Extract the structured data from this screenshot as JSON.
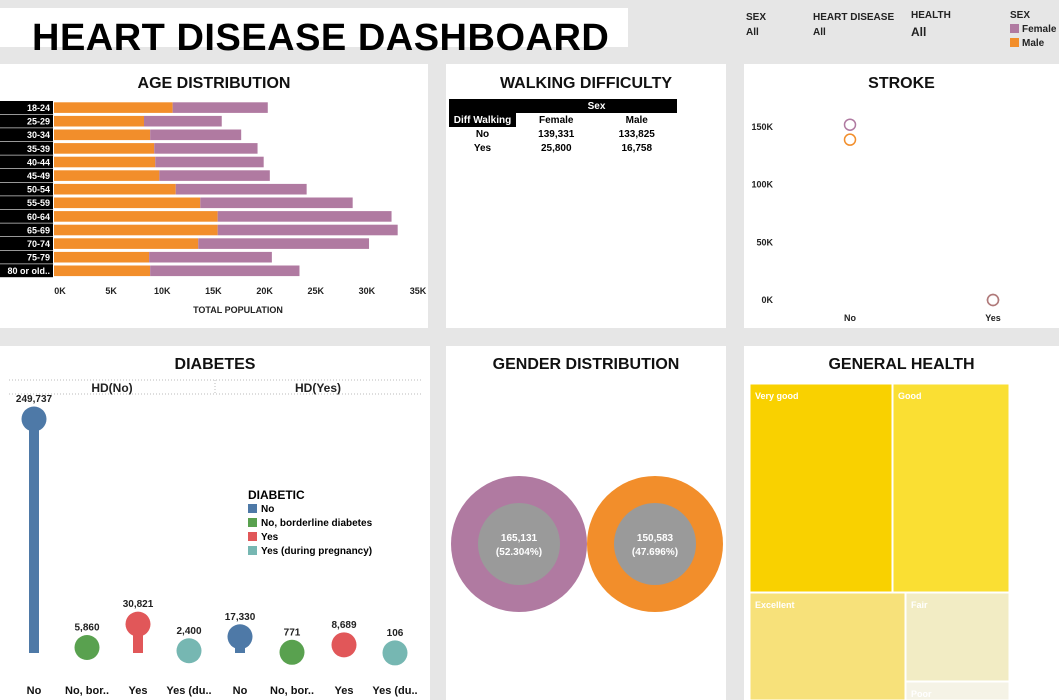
{
  "header": {
    "title": "HEART DISEASE DASHBOARD"
  },
  "filters": [
    {
      "label": "SEX",
      "value": "All"
    },
    {
      "label": "HEART DISEASE",
      "value": "All"
    },
    {
      "label": "HEALTH",
      "value": "All"
    }
  ],
  "legend_sex": {
    "title": "SEX",
    "items": [
      {
        "label": "Female",
        "color": "#b07aa1"
      },
      {
        "label": "Male",
        "color": "#f28e2b"
      }
    ]
  },
  "colors": {
    "female": "#b07aa1",
    "male": "#f28e2b",
    "no": "#4e79a7",
    "borderline": "#59a14f",
    "yes": "#e15759",
    "pregnancy": "#76b7b2"
  },
  "panels": {
    "age": {
      "title": "AGE DISTRIBUTION",
      "xlabel": "TOTAL POPULATION"
    },
    "walking": {
      "title": "WALKING DIFFICULTY",
      "col_group": "Sex",
      "row_header": "Diff Walking",
      "cols": [
        "Female",
        "Male"
      ],
      "rows": [
        {
          "label": "No",
          "values": [
            "139,331",
            "133,825"
          ]
        },
        {
          "label": "Yes",
          "values": [
            "25,800",
            "16,758"
          ]
        }
      ]
    },
    "stroke": {
      "title": "STROKE"
    },
    "diabetes": {
      "title": "DIABETES",
      "legend_title": "DIABETIC",
      "legend_items": [
        "No",
        "No, borderline diabetes",
        "Yes",
        "Yes (during pregnancy)"
      ]
    },
    "gender": {
      "title": "GENDER DISTRIBUTION"
    },
    "health": {
      "title": "GENERAL HEALTH"
    }
  },
  "chart_data": [
    {
      "type": "bar",
      "title": "AGE DISTRIBUTION",
      "xlabel": "TOTAL POPULATION",
      "stacked": true,
      "orientation": "horizontal",
      "categories": [
        "18-24",
        "25-29",
        "30-34",
        "35-39",
        "40-44",
        "45-49",
        "50-54",
        "55-59",
        "60-64",
        "65-69",
        "70-74",
        "75-79",
        "80 or old.."
      ],
      "series": [
        {
          "name": "Male",
          "values": [
            11600,
            8800,
            9400,
            9800,
            9900,
            10300,
            11900,
            14300,
            16000,
            16000,
            14100,
            9300,
            9400
          ]
        },
        {
          "name": "Female",
          "values": [
            9300,
            7600,
            8900,
            10100,
            10600,
            10800,
            12800,
            14900,
            17000,
            17600,
            16700,
            12000,
            14600
          ]
        }
      ],
      "xticks": [
        "0K",
        "5K",
        "10K",
        "15K",
        "20K",
        "25K",
        "30K",
        "35K"
      ],
      "xlim": [
        0,
        35000
      ]
    },
    {
      "type": "scatter",
      "title": "STROKE",
      "categories": [
        "No",
        "Yes"
      ],
      "yticks": [
        "0K",
        "50K",
        "100K",
        "150K"
      ],
      "ylim": [
        0,
        170000
      ],
      "series": [
        {
          "name": "Female",
          "values": [
            152000,
            0
          ]
        },
        {
          "name": "Male",
          "values": [
            139000,
            0
          ]
        }
      ]
    },
    {
      "type": "lollipop",
      "title": "DIABETES",
      "groups": [
        "HD(No)",
        "HD(Yes)"
      ],
      "categories": [
        "No",
        "No, bor..",
        "Yes",
        "Yes (du.."
      ],
      "values": [
        [
          249737,
          5860,
          30821,
          2400
        ],
        [
          17330,
          771,
          8689,
          106
        ]
      ],
      "labels": [
        [
          "249,737",
          "5,860",
          "30,821",
          "2,400"
        ],
        [
          "17,330",
          "771",
          "8,689",
          "106"
        ]
      ]
    },
    {
      "type": "pie",
      "title": "GENDER DISTRIBUTION",
      "slices": [
        {
          "name": "Female",
          "value": 165131,
          "label": "165,131",
          "pct": "(52.304%)"
        },
        {
          "name": "Male",
          "value": 150583,
          "label": "150,583",
          "pct": "(47.696%)"
        }
      ]
    },
    {
      "type": "treemap",
      "title": "GENERAL HEALTH",
      "items": [
        {
          "name": "Very good",
          "color": "#f9d100"
        },
        {
          "name": "Good",
          "color": "#fadf33"
        },
        {
          "name": "Excellent",
          "color": "#f7e17a"
        },
        {
          "name": "Fair",
          "color": "#f2ecc4"
        },
        {
          "name": "Poor",
          "color": "#f5f3e6"
        }
      ]
    }
  ]
}
